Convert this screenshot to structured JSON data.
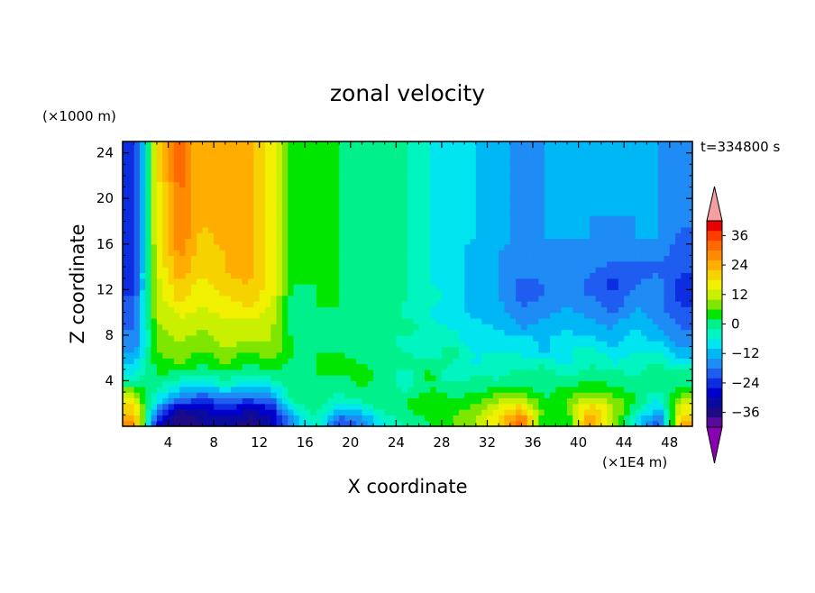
{
  "chart_data": {
    "type": "heatmap",
    "title": "zonal velocity",
    "xlabel": "X coordinate",
    "ylabel": "Z coordinate",
    "x_unit_label": "(×1E4 m)",
    "y_unit_label": "(×1000 m)",
    "time_label": "t=334800 s",
    "xlim": [
      0,
      50
    ],
    "ylim": [
      0,
      25
    ],
    "x_ticks": [
      4,
      8,
      12,
      16,
      20,
      24,
      28,
      32,
      36,
      40,
      44,
      48
    ],
    "y_ticks": [
      4,
      8,
      12,
      16,
      20,
      24
    ],
    "colorbar": {
      "levels": [
        -40,
        -36,
        -32,
        -28,
        -24,
        -20,
        -16,
        -12,
        -8,
        -4,
        0,
        4,
        8,
        12,
        16,
        20,
        24,
        28,
        32,
        36,
        40
      ],
      "tick_labels": [
        36,
        24,
        12,
        0,
        -12,
        -24,
        -36
      ],
      "colors": [
        "#5a0a9a",
        "#1e0a82",
        "#0a0a9e",
        "#0000cd",
        "#0d2ee0",
        "#1f5cf0",
        "#1f8bf5",
        "#00b7f5",
        "#00e5f0",
        "#00f5c0",
        "#00f08c",
        "#00e600",
        "#7ee600",
        "#c8f000",
        "#f0f000",
        "#f5d200",
        "#ffad00",
        "#ff8c00",
        "#ff6a00",
        "#ff3c00",
        "#e60000"
      ],
      "over_color": "#f5a0a0",
      "under_color": "#8a00b4"
    },
    "z_grid": {
      "x_centers": [
        1,
        3,
        5,
        7,
        9,
        11,
        13,
        15,
        17,
        19,
        21,
        23,
        25,
        27,
        29,
        31,
        33,
        35,
        37,
        39,
        41,
        43,
        45,
        47,
        49
      ],
      "z_centers": [
        0.5,
        1.5,
        2.5,
        3.5,
        4.5,
        5.5,
        6.5,
        7.5,
        8.5,
        9.5,
        10.5,
        11.5,
        12.5,
        13.5,
        14.5,
        15.5,
        16.5,
        17.5,
        18.5,
        19.5,
        20.5,
        21.5,
        22.5,
        23.5,
        24.5
      ],
      "values": [
        [
          28,
          -24,
          -36,
          -32,
          -30,
          -34,
          -30,
          -12,
          0,
          -20,
          -14,
          -4,
          2,
          4,
          8,
          12,
          20,
          34,
          4,
          4,
          30,
          10,
          -4,
          -20,
          24
        ],
        [
          22,
          -14,
          -32,
          -28,
          -24,
          -28,
          -26,
          -4,
          2,
          -8,
          -6,
          2,
          4,
          6,
          6,
          10,
          18,
          24,
          6,
          8,
          24,
          14,
          2,
          -10,
          18
        ],
        [
          14,
          -4,
          -14,
          -20,
          -16,
          -18,
          -16,
          2,
          4,
          -2,
          2,
          4,
          4,
          6,
          4,
          6,
          10,
          12,
          4,
          8,
          14,
          10,
          4,
          -4,
          10
        ],
        [
          6,
          0,
          -6,
          -8,
          -4,
          -8,
          -6,
          2,
          4,
          0,
          4,
          2,
          -2,
          4,
          2,
          0,
          4,
          4,
          2,
          4,
          6,
          4,
          2,
          2,
          4
        ],
        [
          -4,
          4,
          2,
          0,
          2,
          0,
          2,
          4,
          4,
          4,
          6,
          2,
          -2,
          6,
          -6,
          2,
          -2,
          4,
          2,
          0,
          2,
          2,
          0,
          4,
          2
        ],
        [
          -8,
          6,
          8,
          4,
          8,
          4,
          6,
          2,
          4,
          6,
          4,
          0,
          2,
          2,
          0,
          -6,
          0,
          -4,
          0,
          -6,
          0,
          -4,
          -2,
          0,
          -6
        ],
        [
          -12,
          8,
          10,
          8,
          10,
          8,
          10,
          4,
          4,
          4,
          2,
          2,
          0,
          -2,
          2,
          -4,
          -4,
          -4,
          -10,
          -4,
          -2,
          -6,
          -4,
          -4,
          -10
        ],
        [
          -16,
          8,
          12,
          10,
          14,
          12,
          12,
          4,
          2,
          2,
          0,
          4,
          -4,
          0,
          -2,
          -8,
          -6,
          -6,
          -8,
          -6,
          -6,
          -10,
          -6,
          -8,
          -14
        ],
        [
          -16,
          10,
          14,
          12,
          14,
          14,
          12,
          2,
          2,
          2,
          4,
          0,
          2,
          -2,
          -4,
          -6,
          -8,
          -12,
          -10,
          -8,
          -10,
          -12,
          -8,
          -12,
          -16
        ],
        [
          -18,
          12,
          16,
          14,
          16,
          16,
          14,
          2,
          4,
          2,
          2,
          2,
          0,
          -4,
          -6,
          -8,
          -10,
          -14,
          -12,
          -10,
          -12,
          -14,
          -10,
          -14,
          -18
        ],
        [
          -20,
          12,
          18,
          16,
          18,
          20,
          16,
          2,
          4,
          4,
          2,
          4,
          -2,
          -4,
          -6,
          -10,
          -10,
          -16,
          -14,
          -12,
          -14,
          -18,
          -12,
          -14,
          -20
        ],
        [
          -20,
          14,
          22,
          16,
          20,
          22,
          18,
          2,
          4,
          4,
          2,
          4,
          0,
          -2,
          -6,
          -10,
          -12,
          -18,
          -16,
          -14,
          -16,
          -20,
          -14,
          -14,
          -22
        ],
        [
          -22,
          14,
          24,
          18,
          22,
          24,
          18,
          4,
          4,
          4,
          2,
          4,
          0,
          -4,
          -6,
          -10,
          -12,
          -18,
          -16,
          -12,
          -18,
          -22,
          -16,
          -14,
          -22
        ],
        [
          -22,
          16,
          26,
          20,
          24,
          26,
          18,
          4,
          4,
          4,
          2,
          2,
          0,
          -4,
          -6,
          -10,
          -12,
          -14,
          -14,
          -12,
          -16,
          -18,
          -18,
          -16,
          -20
        ],
        [
          -24,
          16,
          28,
          20,
          24,
          26,
          18,
          4,
          4,
          4,
          2,
          2,
          0,
          -4,
          -6,
          -10,
          -12,
          -14,
          -14,
          -12,
          -14,
          -16,
          -16,
          -16,
          -20
        ],
        [
          -24,
          16,
          30,
          22,
          24,
          26,
          18,
          4,
          4,
          4,
          2,
          2,
          0,
          -4,
          -6,
          -10,
          -12,
          -14,
          -14,
          -12,
          -14,
          -14,
          -14,
          -14,
          -18
        ],
        [
          -24,
          18,
          32,
          22,
          26,
          26,
          18,
          4,
          4,
          4,
          2,
          2,
          0,
          -4,
          -6,
          -8,
          -10,
          -14,
          -12,
          -12,
          -12,
          -14,
          -12,
          -12,
          -18
        ],
        [
          -24,
          18,
          32,
          24,
          26,
          26,
          18,
          4,
          4,
          4,
          2,
          2,
          0,
          -4,
          -6,
          -8,
          -10,
          -14,
          -12,
          -12,
          -12,
          -14,
          -12,
          -12,
          -16
        ],
        [
          -24,
          18,
          32,
          24,
          26,
          26,
          18,
          4,
          4,
          4,
          2,
          2,
          0,
          -4,
          -6,
          -8,
          -10,
          -14,
          -12,
          -12,
          -12,
          -12,
          -12,
          -12,
          -16
        ],
        [
          -24,
          18,
          32,
          24,
          26,
          26,
          18,
          4,
          4,
          4,
          2,
          2,
          0,
          -4,
          -6,
          -8,
          -10,
          -14,
          -12,
          -12,
          -12,
          -12,
          -12,
          -12,
          -16
        ],
        [
          -24,
          18,
          32,
          24,
          26,
          26,
          18,
          4,
          4,
          4,
          2,
          2,
          0,
          -4,
          -6,
          -8,
          -10,
          -14,
          -12,
          -12,
          -12,
          -12,
          -12,
          -12,
          -16
        ],
        [
          -24,
          18,
          34,
          24,
          26,
          26,
          18,
          4,
          4,
          4,
          2,
          2,
          0,
          -4,
          -6,
          -8,
          -10,
          -14,
          -12,
          -12,
          -12,
          -12,
          -12,
          -12,
          -16
        ],
        [
          -24,
          18,
          34,
          24,
          26,
          26,
          18,
          4,
          4,
          4,
          2,
          2,
          0,
          -4,
          -6,
          -8,
          -10,
          -14,
          -12,
          -12,
          -12,
          -12,
          -12,
          -12,
          -16
        ],
        [
          -24,
          18,
          34,
          24,
          26,
          26,
          18,
          4,
          4,
          4,
          2,
          2,
          0,
          -4,
          -6,
          -8,
          -10,
          -14,
          -12,
          -12,
          -12,
          -12,
          -12,
          -12,
          -16
        ],
        [
          -24,
          18,
          34,
          24,
          26,
          26,
          18,
          4,
          4,
          4,
          2,
          2,
          0,
          -4,
          -6,
          -8,
          -10,
          -14,
          -12,
          -12,
          -12,
          -12,
          -12,
          -12,
          -16
        ]
      ]
    }
  }
}
